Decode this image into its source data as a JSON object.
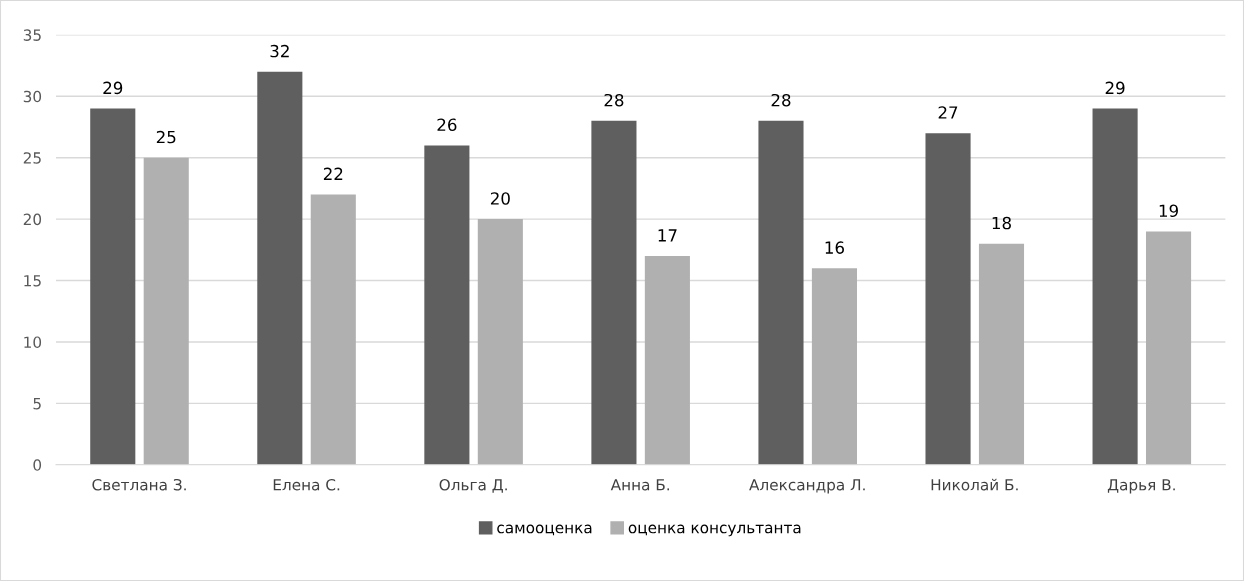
{
  "chart_data": {
    "type": "bar",
    "categories": [
      "Светлана З.",
      "Елена С.",
      "Ольга Д.",
      "Анна Б.",
      "Александра Л.",
      "Николай Б.",
      "Дарья В."
    ],
    "series": [
      {
        "name": "самооценка",
        "color": "#5f5f5f",
        "values": [
          29,
          32,
          26,
          28,
          28,
          27,
          29
        ]
      },
      {
        "name": "оценка консультанта",
        "color": "#b0b0b0",
        "values": [
          25,
          22,
          20,
          17,
          16,
          18,
          19
        ]
      }
    ],
    "ylim": [
      0,
      35
    ],
    "yticks": [
      0,
      5,
      10,
      15,
      20,
      25,
      30,
      35
    ],
    "grid": "y",
    "legend": "bottom",
    "data_labels": true
  }
}
